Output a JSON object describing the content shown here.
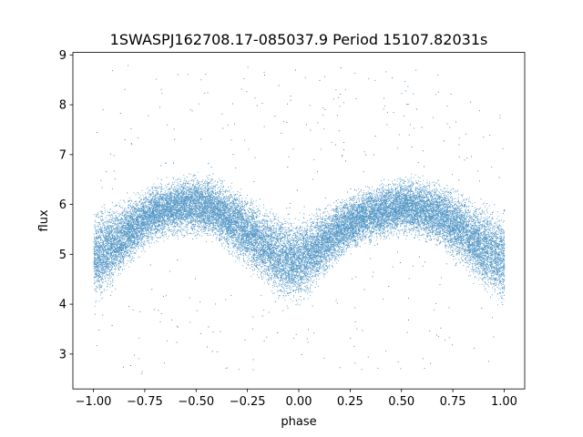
{
  "chart_data": {
    "type": "scatter",
    "title": "1SWASPJ162708.17-085037.9 Period 15107.82031s",
    "xlabel": "phase",
    "ylabel": "flux",
    "xlim": [
      -1.1,
      1.1
    ],
    "ylim": [
      2.3,
      9.05
    ],
    "x_ticks": [
      -1.0,
      -0.75,
      -0.5,
      -0.25,
      0.0,
      0.25,
      0.5,
      0.75,
      1.0
    ],
    "x_tick_labels": [
      "−1.00",
      "−0.75",
      "−0.50",
      "−0.25",
      "0.00",
      "0.25",
      "0.50",
      "0.75",
      "1.00"
    ],
    "y_ticks": [
      3,
      4,
      5,
      6,
      7,
      8,
      9
    ],
    "y_tick_labels": [
      "3",
      "4",
      "5",
      "6",
      "7",
      "8",
      "9"
    ],
    "grid": false,
    "series": [
      {
        "color": "#1f77b4",
        "phase_range": [
          -1.0,
          1.0
        ],
        "envelope": {
          "x": [
            -1.0,
            -0.9,
            -0.8,
            -0.7,
            -0.6,
            -0.5,
            -0.4,
            -0.3,
            -0.2,
            -0.1,
            0.0,
            0.1,
            0.2,
            0.3,
            0.4,
            0.5,
            0.6,
            0.7,
            0.8,
            0.9,
            1.0
          ],
          "top": [
            6.0,
            6.1,
            6.3,
            6.5,
            6.6,
            6.7,
            6.6,
            6.4,
            6.1,
            5.9,
            5.8,
            6.0,
            6.2,
            6.4,
            6.5,
            6.6,
            6.6,
            6.5,
            6.3,
            6.1,
            6.0
          ],
          "bottom": [
            3.9,
            4.3,
            4.8,
            5.2,
            5.3,
            5.3,
            5.1,
            4.8,
            4.4,
            4.0,
            3.9,
            4.3,
            4.8,
            5.1,
            5.2,
            5.3,
            5.2,
            5.0,
            4.6,
            4.1,
            3.9
          ]
        },
        "outlier_range": [
          2.6,
          8.8
        ]
      }
    ]
  }
}
